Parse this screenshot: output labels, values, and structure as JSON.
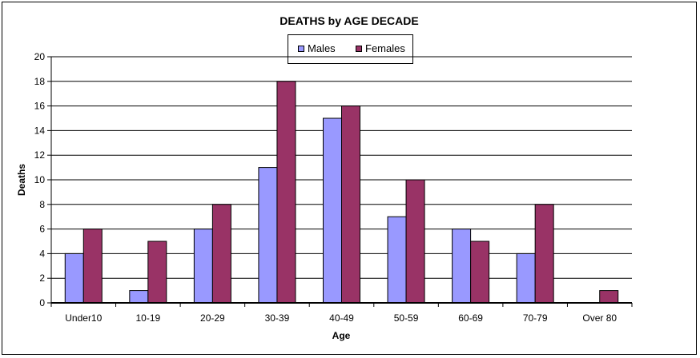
{
  "chart_data": {
    "type": "bar",
    "title": "DEATHS by AGE DECADE",
    "xlabel": "Age",
    "ylabel": "Deaths",
    "ylim": [
      0,
      20
    ],
    "yticks": [
      0,
      2,
      4,
      6,
      8,
      10,
      12,
      14,
      16,
      18,
      20
    ],
    "grid": true,
    "legend_position": "top",
    "categories": [
      "Under10",
      "10-19",
      "20-29",
      "30-39",
      "40-49",
      "50-59",
      "60-69",
      "70-79",
      "Over 80"
    ],
    "series": [
      {
        "name": "Males",
        "color": "#9999ff",
        "values": [
          4,
          1,
          6,
          11,
          15,
          7,
          6,
          4,
          0
        ]
      },
      {
        "name": "Females",
        "color": "#993366",
        "values": [
          6,
          5,
          8,
          18,
          16,
          10,
          5,
          8,
          1
        ]
      }
    ]
  }
}
